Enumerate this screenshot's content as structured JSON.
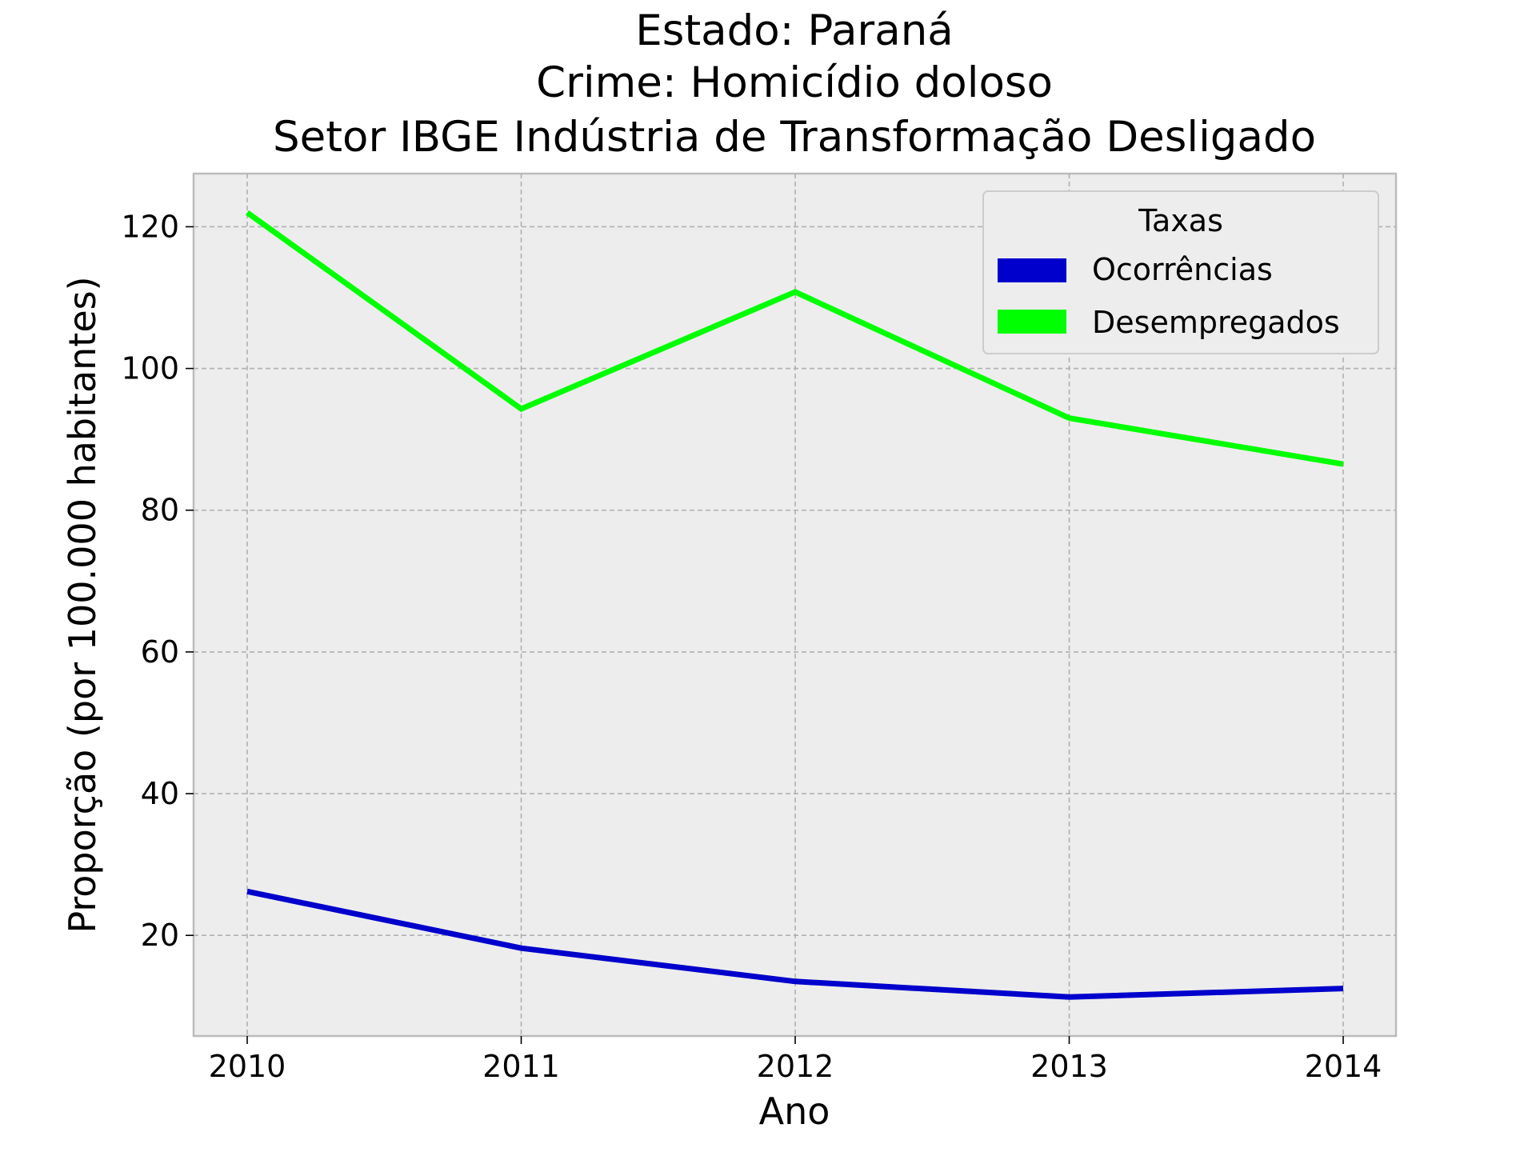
{
  "chart_data": {
    "type": "line",
    "title_lines": [
      "Estado: Paraná",
      "Crime: Homicídio doloso",
      "Setor IBGE  Indústria de Transformação   Desligado"
    ],
    "xlabel": "Ano",
    "ylabel": "Proporção (por 100.000 habitantes)",
    "x": [
      "2010",
      "2011",
      "2012",
      "2013",
      "2014"
    ],
    "y_ticks": [
      "20",
      "40",
      "60",
      "80",
      "100",
      "120"
    ],
    "ylim": [
      5.8,
      127.5
    ],
    "grid": true,
    "legend": {
      "title": "Taxas",
      "placement": "top-right"
    },
    "series": [
      {
        "name": "Ocorrências",
        "color": "#0000cc",
        "values": [
          26.2,
          18.2,
          13.5,
          11.3,
          12.5
        ]
      },
      {
        "name": "Desempregados",
        "color": "#00ff00",
        "values": [
          122.0,
          94.3,
          110.8,
          93.0,
          86.5
        ]
      }
    ]
  }
}
